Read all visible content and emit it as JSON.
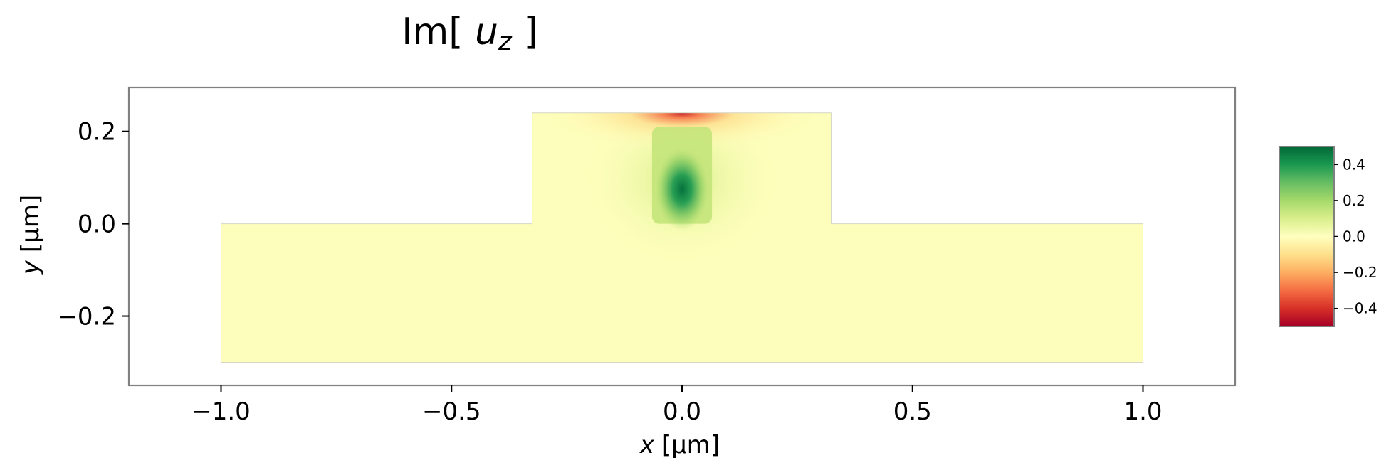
{
  "chart_data": {
    "type": "heatmap",
    "title": {
      "prefix": "Im[ ",
      "var": "u",
      "sub": "z",
      "suffix": " ]"
    },
    "xlabel": {
      "var": "x",
      "unit": " [μm]"
    },
    "ylabel": {
      "var": "y",
      "unit": " [μm]"
    },
    "xlim": [
      -1.2,
      1.2
    ],
    "ylim": [
      -0.35,
      0.295
    ],
    "xticks": [
      {
        "value": -1.0,
        "label": "−1.0"
      },
      {
        "value": -0.5,
        "label": "−0.5"
      },
      {
        "value": 0.0,
        "label": "0.0"
      },
      {
        "value": 0.5,
        "label": "0.5"
      },
      {
        "value": 1.0,
        "label": "1.0"
      }
    ],
    "yticks": [
      {
        "value": -0.2,
        "label": "−0.2"
      },
      {
        "value": 0.0,
        "label": "0.0"
      },
      {
        "value": 0.2,
        "label": "0.2"
      }
    ],
    "domain": {
      "slab": {
        "x": [
          -1.0,
          1.0
        ],
        "y": [
          -0.3,
          0.0
        ]
      },
      "rib": {
        "x": [
          -0.325,
          0.325
        ],
        "y": [
          0.0,
          0.24
        ]
      },
      "core": {
        "x": [
          -0.065,
          0.065
        ],
        "y": [
          0.0,
          0.21
        ]
      }
    },
    "field_features": [
      {
        "kind": "peak",
        "x": 0.0,
        "y": 0.075,
        "value": 0.48
      },
      {
        "kind": "minimum",
        "x": 0.0,
        "y": 0.24,
        "value": -0.45
      },
      {
        "kind": "background",
        "value": 0.0
      }
    ],
    "colorbar": {
      "colormap": "RdYlGn",
      "range": [
        -0.5,
        0.5
      ],
      "ticks": [
        {
          "value": 0.4,
          "label": "0.4"
        },
        {
          "value": 0.2,
          "label": "0.2"
        },
        {
          "value": 0.0,
          "label": "0.0"
        },
        {
          "value": -0.2,
          "label": "−0.2"
        },
        {
          "value": -0.4,
          "label": "−0.4"
        }
      ],
      "colors": [
        "#a50026",
        "#d73027",
        "#f46d43",
        "#fdae61",
        "#fee08b",
        "#ffffbf",
        "#d9ef8b",
        "#a6d96a",
        "#66bd63",
        "#1a9850",
        "#006837"
      ]
    },
    "grid": false,
    "legend": "none"
  }
}
